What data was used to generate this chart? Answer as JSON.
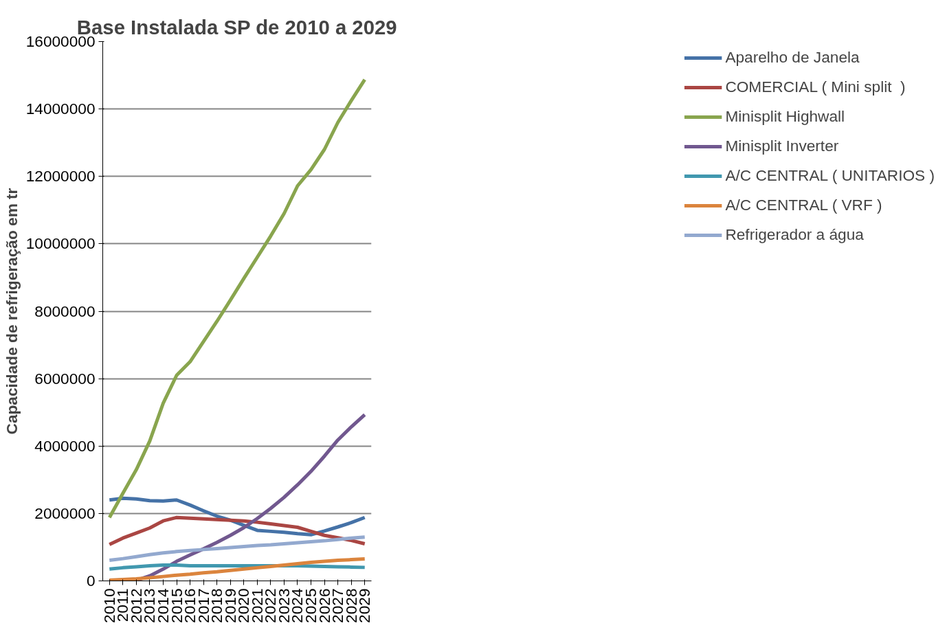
{
  "chart_data": {
    "type": "line",
    "title": "Base Instalada SP de 2010 a 2029",
    "ylabel": "Capacidade de refrigeração em tr",
    "categories": [
      "2010",
      "2011",
      "2012",
      "2013",
      "2014",
      "2015",
      "2016",
      "2017",
      "2018",
      "2019",
      "2020",
      "2021",
      "2022",
      "2023",
      "2024",
      "2025",
      "2026",
      "2027",
      "2028",
      "2029"
    ],
    "ylim": [
      0,
      16000000
    ],
    "yticks": [
      0,
      2000000,
      4000000,
      6000000,
      8000000,
      10000000,
      12000000,
      14000000,
      16000000
    ],
    "grid": "y",
    "legend": "right",
    "marker": "none",
    "line_style": "solid",
    "series": [
      {
        "name": "Aparelho de Janela",
        "color": "#4572a7",
        "values": [
          2400000,
          2450000,
          2430000,
          2380000,
          2370000,
          2400000,
          2250000,
          2080000,
          1920000,
          1800000,
          1650000,
          1500000,
          1470000,
          1440000,
          1400000,
          1370000,
          1480000,
          1600000,
          1730000,
          1880000
        ]
      },
      {
        "name": "COMERCIAL ( Mini split  )",
        "color": "#aa4643",
        "values": [
          1080000,
          1270000,
          1420000,
          1570000,
          1780000,
          1880000,
          1860000,
          1840000,
          1820000,
          1800000,
          1780000,
          1740000,
          1690000,
          1640000,
          1590000,
          1470000,
          1350000,
          1280000,
          1200000,
          1100000
        ]
      },
      {
        "name": "Minisplit Highwall",
        "color": "#89a54e",
        "values": [
          1880000,
          2600000,
          3300000,
          4150000,
          5270000,
          6100000,
          6500000,
          7100000,
          7700000,
          8330000,
          8970000,
          9600000,
          10230000,
          10900000,
          11720000,
          12200000,
          12800000,
          13600000,
          14250000,
          14870000
        ]
      },
      {
        "name": "Minisplit Inverter",
        "color": "#71588f",
        "values": [
          0,
          0,
          20000,
          150000,
          350000,
          580000,
          770000,
          950000,
          1140000,
          1350000,
          1580000,
          1850000,
          2150000,
          2480000,
          2850000,
          3250000,
          3700000,
          4180000,
          4570000,
          4930000
        ]
      },
      {
        "name": "A/C CENTRAL ( UNITARIOS )",
        "color": "#4198af",
        "values": [
          350000,
          390000,
          420000,
          450000,
          470000,
          470000,
          450000,
          450000,
          450000,
          450000,
          450000,
          450000,
          450000,
          450000,
          450000,
          440000,
          430000,
          420000,
          410000,
          400000
        ]
      },
      {
        "name": "A/C CENTRAL ( VRF )",
        "color": "#db843d",
        "values": [
          20000,
          40000,
          60000,
          90000,
          130000,
          170000,
          200000,
          240000,
          270000,
          310000,
          350000,
          390000,
          430000,
          470000,
          510000,
          550000,
          580000,
          610000,
          630000,
          650000
        ]
      },
      {
        "name": "Refrigerador a água",
        "color": "#93a9cf",
        "values": [
          610000,
          660000,
          720000,
          780000,
          830000,
          870000,
          900000,
          930000,
          960000,
          990000,
          1020000,
          1050000,
          1070000,
          1100000,
          1130000,
          1160000,
          1190000,
          1230000,
          1270000,
          1300000
        ]
      }
    ]
  }
}
